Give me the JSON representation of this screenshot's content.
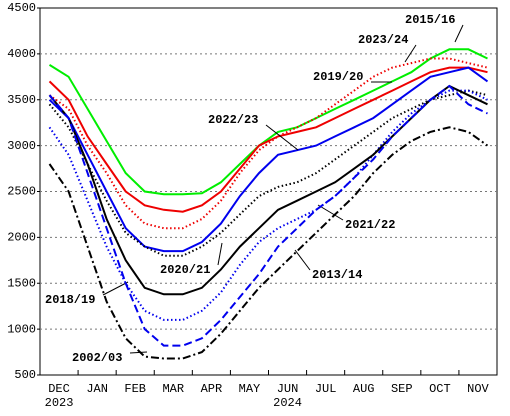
{
  "chart_data": {
    "type": "line",
    "categories": [
      "DEC",
      null,
      "JAN",
      null,
      "FEB",
      null,
      "MAR",
      null,
      "APR",
      null,
      "MAY",
      null,
      "JUN",
      null,
      "JUL",
      null,
      "AUG",
      null,
      "SEP",
      null,
      "OCT",
      null,
      "NOV",
      null
    ],
    "year_labels": [
      "2023",
      "2024"
    ],
    "ylim": [
      500,
      4500
    ],
    "yticks": [
      500,
      1000,
      1500,
      2000,
      2500,
      3000,
      3500,
      4000,
      4500
    ],
    "grid": true,
    "series": [
      {
        "name": "2015/16",
        "color": "#00ee00",
        "dash": "solid",
        "values": [
          3880,
          3750,
          3400,
          3050,
          2700,
          2500,
          2470,
          2470,
          2480,
          2600,
          2800,
          3000,
          3150,
          3200,
          3300,
          3400,
          3500,
          3600,
          3700,
          3800,
          3950,
          4050,
          4050,
          3950
        ]
      },
      {
        "name": "2019/20",
        "color": "#ee0000",
        "dash": "solid",
        "values": [
          3700,
          3500,
          3100,
          2800,
          2500,
          2350,
          2300,
          2280,
          2350,
          2500,
          2750,
          3000,
          3100,
          3150,
          3200,
          3300,
          3400,
          3500,
          3600,
          3700,
          3800,
          3850,
          3850,
          3800
        ]
      },
      {
        "name": "2023/24",
        "color": "#ee0000",
        "dash": "dotted",
        "values": [
          3550,
          3400,
          3000,
          2700,
          2350,
          2150,
          2100,
          2100,
          2200,
          2400,
          2700,
          2950,
          3100,
          3200,
          3300,
          3450,
          3600,
          3750,
          3850,
          3900,
          3950,
          3950,
          3900,
          3850
        ]
      },
      {
        "name": "2022/23",
        "color": "#0000ee",
        "dash": "solid",
        "values": [
          3500,
          3300,
          2900,
          2500,
          2100,
          1900,
          1850,
          1850,
          1950,
          2150,
          2450,
          2700,
          2900,
          2950,
          3000,
          3100,
          3200,
          3300,
          3450,
          3600,
          3750,
          3800,
          3850,
          3700
        ]
      },
      {
        "name": "2020/21",
        "color": "#000000",
        "dash": "dotted",
        "values": [
          3450,
          3200,
          2800,
          2400,
          2050,
          1900,
          1800,
          1800,
          1900,
          2050,
          2250,
          2450,
          2550,
          2600,
          2700,
          2850,
          3000,
          3150,
          3300,
          3400,
          3500,
          3550,
          3600,
          3550
        ]
      },
      {
        "name": "2018/19",
        "color": "#0000ee",
        "dash": "dotted",
        "values": [
          3200,
          2900,
          2400,
          1900,
          1500,
          1200,
          1100,
          1100,
          1200,
          1400,
          1700,
          1950,
          2100,
          2200,
          2300,
          2450,
          2650,
          2900,
          3150,
          3350,
          3500,
          3600,
          3600,
          3500
        ]
      },
      {
        "name": "2021/22",
        "color": "#000000",
        "dash": "solid",
        "values": [
          3550,
          3300,
          2800,
          2200,
          1750,
          1450,
          1380,
          1380,
          1450,
          1650,
          1900,
          2100,
          2300,
          2400,
          2500,
          2600,
          2750,
          2900,
          3100,
          3300,
          3500,
          3650,
          3550,
          3450
        ]
      },
      {
        "name": "2013/14",
        "color": "#0000ee",
        "dash": "dashed",
        "values": [
          3550,
          3300,
          2700,
          2100,
          1500,
          1000,
          820,
          820,
          900,
          1100,
          1350,
          1600,
          1900,
          2100,
          2300,
          2450,
          2650,
          2850,
          3100,
          3300,
          3500,
          3650,
          3450,
          3350
        ]
      },
      {
        "name": "2002/03",
        "color": "#000000",
        "dash": "dashdot",
        "values": [
          2800,
          2500,
          1900,
          1300,
          900,
          700,
          680,
          680,
          750,
          950,
          1200,
          1450,
          1650,
          1850,
          2050,
          2250,
          2450,
          2700,
          2900,
          3050,
          3150,
          3200,
          3150,
          3000
        ]
      }
    ]
  }
}
